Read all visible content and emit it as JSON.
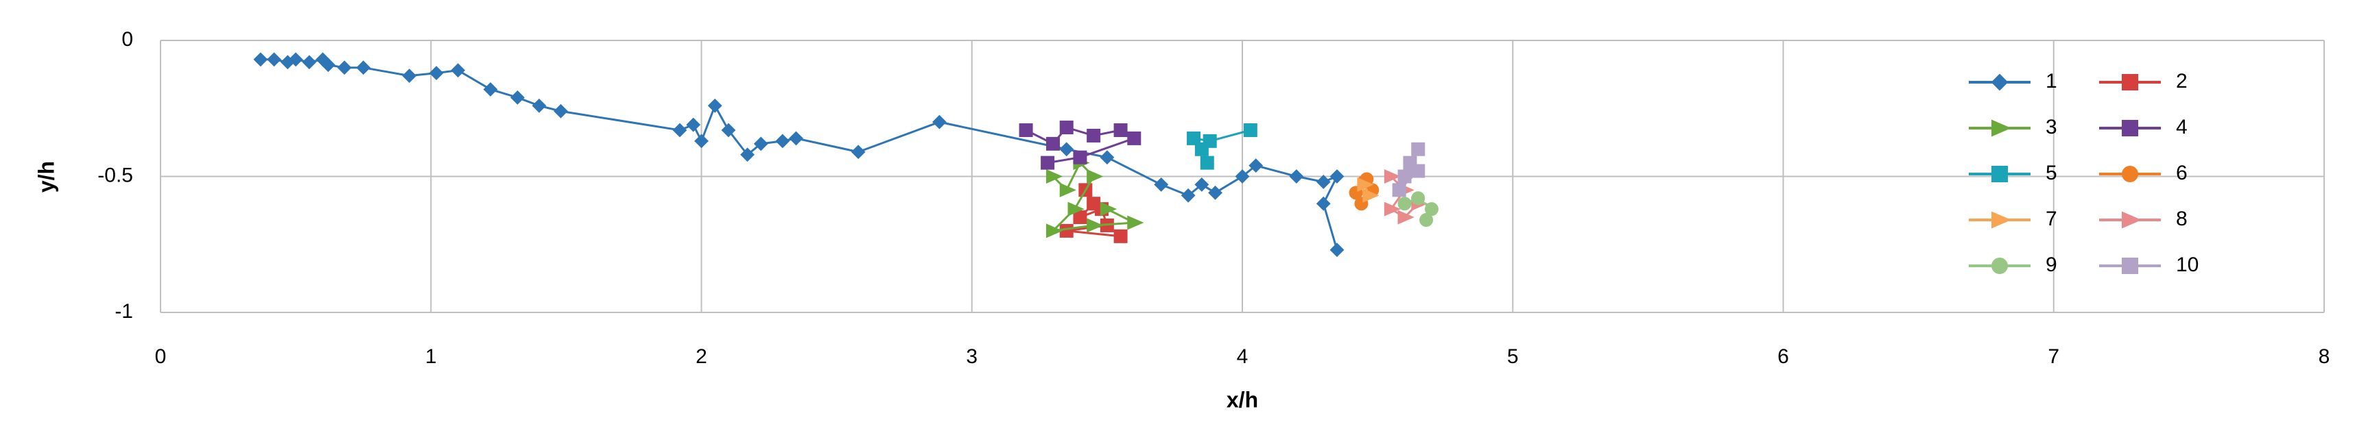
{
  "chart_data": {
    "type": "scatter",
    "x_label": "x/h",
    "y_label": "y/h",
    "xlim": [
      0,
      8
    ],
    "xticks": [
      0,
      1,
      2,
      3,
      4,
      5,
      6,
      7,
      8
    ],
    "ylim": [
      -1,
      0
    ],
    "yticks": [
      0,
      -0.5,
      -1
    ],
    "grid": true,
    "series": [
      {
        "name": "1",
        "color": "#2e75b6",
        "marker": "diamond",
        "x": [
          0.37,
          0.42,
          0.47,
          0.5,
          0.55,
          0.6,
          0.62,
          0.68,
          0.75,
          0.92,
          1.02,
          1.1,
          1.22,
          1.32,
          1.4,
          1.48,
          1.92,
          1.97,
          2.0,
          2.05,
          2.1,
          2.17,
          2.22,
          2.3,
          2.35,
          2.58,
          2.88,
          3.35,
          3.5,
          3.7,
          3.8,
          3.85,
          3.9,
          4.0,
          4.05,
          4.2,
          4.3,
          4.35,
          4.3,
          4.35
        ],
        "values": [
          -0.07,
          -0.07,
          -0.08,
          -0.07,
          -0.08,
          -0.07,
          -0.09,
          -0.1,
          -0.1,
          -0.13,
          -0.12,
          -0.11,
          -0.18,
          -0.21,
          -0.24,
          -0.26,
          -0.33,
          -0.31,
          -0.37,
          -0.24,
          -0.33,
          -0.42,
          -0.38,
          -0.37,
          -0.36,
          -0.41,
          -0.3,
          -0.4,
          -0.43,
          -0.53,
          -0.57,
          -0.53,
          -0.56,
          -0.5,
          -0.46,
          -0.5,
          -0.52,
          -0.5,
          -0.6,
          -0.77
        ]
      },
      {
        "name": "2",
        "color": "#d6403c",
        "marker": "square",
        "x": [
          3.42,
          3.45,
          3.4,
          3.48,
          3.5,
          3.35,
          3.55
        ],
        "values": [
          -0.55,
          -0.6,
          -0.65,
          -0.62,
          -0.68,
          -0.7,
          -0.72
        ]
      },
      {
        "name": "3",
        "color": "#6aaa3a",
        "marker": "triangle",
        "x": [
          3.3,
          3.35,
          3.4,
          3.45,
          3.38,
          3.3,
          3.45,
          3.6,
          3.5
        ],
        "values": [
          -0.5,
          -0.55,
          -0.45,
          -0.5,
          -0.62,
          -0.7,
          -0.68,
          -0.67,
          -0.62
        ]
      },
      {
        "name": "4",
        "color": "#6e3e94",
        "marker": "square",
        "x": [
          3.2,
          3.3,
          3.35,
          3.45,
          3.55,
          3.6,
          3.4,
          3.28
        ],
        "values": [
          -0.33,
          -0.38,
          -0.32,
          -0.35,
          -0.33,
          -0.36,
          -0.43,
          -0.45
        ]
      },
      {
        "name": "5",
        "color": "#1ba3b8",
        "marker": "square",
        "x": [
          4.03,
          3.88,
          3.82,
          3.85,
          3.87
        ],
        "values": [
          -0.33,
          -0.37,
          -0.36,
          -0.4,
          -0.45
        ]
      },
      {
        "name": "6",
        "color": "#f07f24",
        "marker": "circle",
        "x": [
          4.45,
          4.42,
          4.44,
          4.48,
          4.46
        ],
        "values": [
          -0.52,
          -0.56,
          -0.6,
          -0.55,
          -0.51
        ]
      },
      {
        "name": "7",
        "color": "#f7a552",
        "marker": "triangle",
        "x": [
          4.45,
          4.47
        ],
        "values": [
          -0.53,
          -0.57
        ]
      },
      {
        "name": "8",
        "color": "#e8898a",
        "marker": "triangle",
        "x": [
          4.55,
          4.6,
          4.55,
          4.6,
          4.65
        ],
        "values": [
          -0.5,
          -0.55,
          -0.62,
          -0.65,
          -0.6
        ]
      },
      {
        "name": "9",
        "color": "#98c785",
        "marker": "circle",
        "x": [
          4.6,
          4.65,
          4.7,
          4.68
        ],
        "values": [
          -0.6,
          -0.58,
          -0.62,
          -0.66
        ]
      },
      {
        "name": "10",
        "color": "#b3a2c7",
        "marker": "square",
        "x": [
          4.65,
          4.62,
          4.6,
          4.58,
          4.65
        ],
        "values": [
          -0.4,
          -0.45,
          -0.5,
          -0.55,
          -0.48
        ]
      }
    ]
  }
}
